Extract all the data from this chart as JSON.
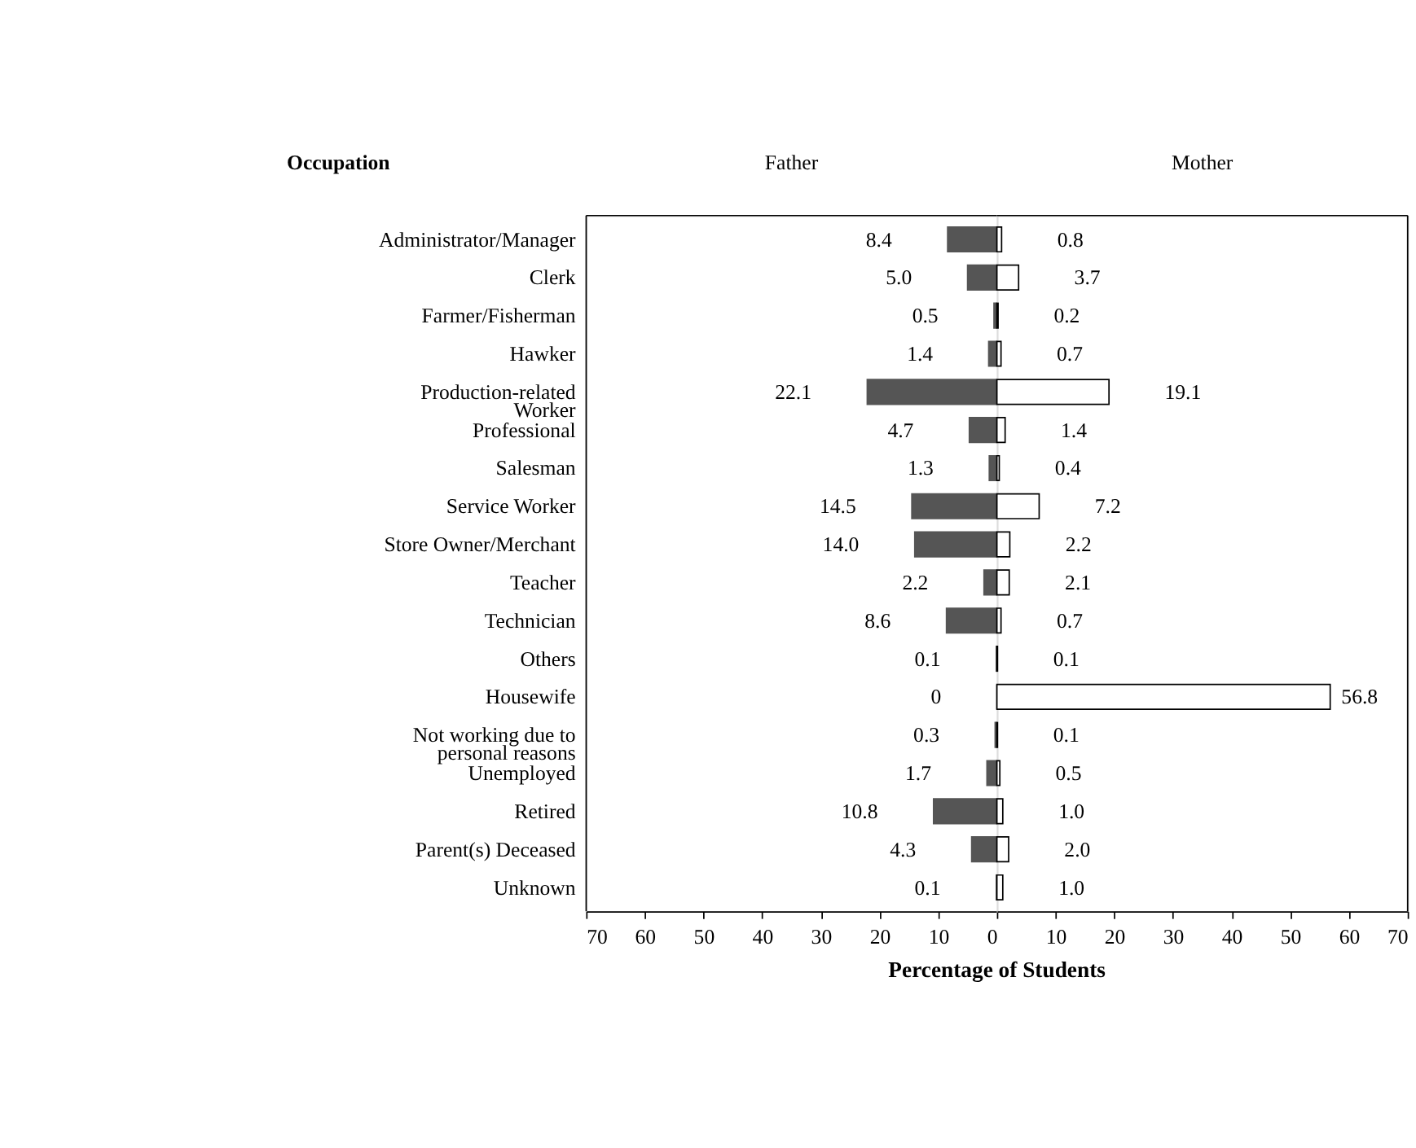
{
  "chart_data": [
    {
      "type": "bar",
      "orientation": "horizontal",
      "title": "Father",
      "ylabel": "Occupation",
      "xlabel": "Percentage of Students",
      "categories": [
        "Administrator/Manager",
        "Clerk",
        "Farmer/Fisherman",
        "Hawker",
        "Production-related Worker",
        "Professional",
        "Salesman",
        "Service Worker",
        "Store Owner/Merchant",
        "Teacher",
        "Technician",
        "Others",
        "Housewife",
        "Not working due to personal reasons",
        "Unemployed",
        "Retired",
        "Parent(s) Deceased",
        "Unknown"
      ],
      "series": [
        {
          "color": "#555555",
          "values": [
            8.4,
            5.0,
            0.5,
            1.4,
            22.1,
            4.7,
            1.3,
            14.5,
            14.0,
            2.2,
            8.6,
            0.1,
            0,
            0.3,
            1.7,
            10.8,
            4.3,
            0.1
          ],
          "value_labels": [
            "8.4",
            "5.0",
            "0.5",
            "1.4",
            "22.1",
            "4.7",
            "1.3",
            "14.5",
            "14.0",
            "2.2",
            "8.6",
            "0.1",
            "0",
            "0.3",
            "1.7",
            "10.8",
            "4.3",
            "0.1"
          ]
        }
      ],
      "xlim": [
        70,
        0
      ],
      "xticks": [
        70,
        60,
        50,
        40,
        30,
        20,
        10,
        0
      ]
    },
    {
      "type": "bar",
      "orientation": "horizontal",
      "title": "Mother",
      "tick_labels": "x",
      "categories": [
        "Administrator/Manager",
        "Clerk",
        "Farmer/Fisherman",
        "Hawker",
        "Production-related Worker",
        "Professional",
        "Salesman",
        "Service Worker",
        "Store Owner/Merchant",
        "Teacher",
        "Technician",
        "Others",
        "Housewife",
        "Not working due to personal reasons",
        "Unemployed",
        "Retired",
        "Parent(s) Deceased",
        "Unknown"
      ],
      "series": [
        {
          "color": "#ffffff",
          "values": [
            0.8,
            3.7,
            0.2,
            0.7,
            19.1,
            1.4,
            0.4,
            7.2,
            2.2,
            2.1,
            0.7,
            0.1,
            56.8,
            0.1,
            0.5,
            1.0,
            2.0,
            1.0
          ],
          "value_labels": [
            "0.8",
            "3.7",
            "0.2",
            "0.7",
            "19.1",
            "1.4",
            "0.4",
            "7.2",
            "2.2",
            "2.1",
            "0.7",
            "0.1",
            "56.8",
            "0.1",
            "0.5",
            "1.0",
            "2.0",
            "1.0"
          ]
        }
      ],
      "xlim": [
        0,
        70
      ],
      "xticks": [
        10,
        20,
        30,
        40,
        50,
        60,
        70
      ]
    }
  ]
}
